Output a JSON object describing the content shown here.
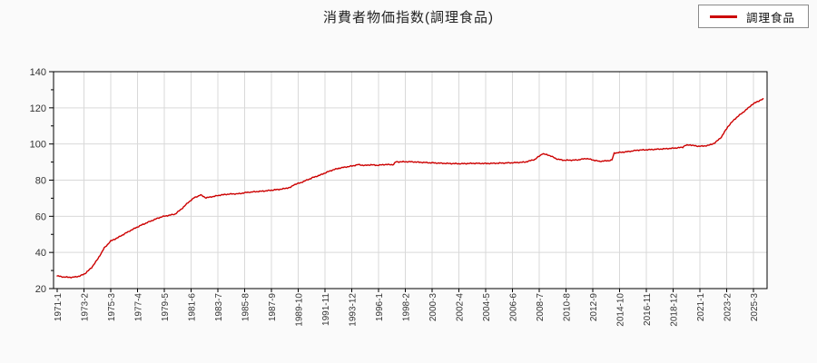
{
  "page": {
    "background": "#fafafa"
  },
  "header": {
    "title": "消費者物価指数(調理食品)"
  },
  "legend": {
    "items": [
      {
        "label": "調理食品",
        "color": "#cc0000"
      }
    ]
  },
  "chart_data": {
    "type": "line",
    "title": "消費者物価指数(調理食品)",
    "xlabel": "",
    "ylabel": "",
    "ylim": [
      20,
      140
    ],
    "y_major_ticks": [
      20,
      40,
      60,
      80,
      100,
      120,
      140
    ],
    "y_minor_step": 10,
    "grid": true,
    "legend_position": "top-right",
    "x_tick_labels": [
      "1971-1",
      "1973-2",
      "1975-3",
      "1977-4",
      "1979-5",
      "1981-6",
      "1983-7",
      "1985-8",
      "1987-9",
      "1989-10",
      "1991-11",
      "1993-12",
      "1996-1",
      "1998-2",
      "2000-3",
      "2002-4",
      "2004-5",
      "2006-6",
      "2008-7",
      "2010-8",
      "2012-9",
      "2014-10",
      "2016-11",
      "2018-12",
      "2021-1",
      "2023-2",
      "2025-3"
    ],
    "x_tick_interval_months": 25,
    "x_range_months": [
      "1971-1",
      "2025-12"
    ],
    "series": [
      {
        "name": "調理食品",
        "color": "#cc0000",
        "points": [
          [
            "1971-1",
            27.0
          ],
          [
            "1971-7",
            26.4
          ],
          [
            "1972-3",
            26.2
          ],
          [
            "1972-10",
            26.9
          ],
          [
            "1973-3",
            28.3
          ],
          [
            "1973-9",
            31.5
          ],
          [
            "1974-3",
            36.5
          ],
          [
            "1974-9",
            42.5
          ],
          [
            "1975-3",
            46.3
          ],
          [
            "1975-9",
            48.0
          ],
          [
            "1976-3",
            50.0
          ],
          [
            "1976-9",
            52.0
          ],
          [
            "1977-3",
            53.8
          ],
          [
            "1977-9",
            55.5
          ],
          [
            "1978-3",
            57.0
          ],
          [
            "1978-9",
            58.5
          ],
          [
            "1979-3",
            59.8
          ],
          [
            "1979-9",
            60.5
          ],
          [
            "1980-3",
            61.2
          ],
          [
            "1980-9",
            64.0
          ],
          [
            "1981-3",
            67.5
          ],
          [
            "1981-9",
            70.3
          ],
          [
            "1982-3",
            71.8
          ],
          [
            "1982-8",
            70.2
          ],
          [
            "1983-3",
            71.0
          ],
          [
            "1983-10",
            71.8
          ],
          [
            "1984-6",
            72.3
          ],
          [
            "1985-3",
            72.5
          ],
          [
            "1985-10",
            73.2
          ],
          [
            "1986-6",
            73.6
          ],
          [
            "1987-3",
            74.0
          ],
          [
            "1987-10",
            74.5
          ],
          [
            "1988-6",
            75.0
          ],
          [
            "1989-3",
            76.0
          ],
          [
            "1989-6",
            77.5
          ],
          [
            "1989-12",
            78.5
          ],
          [
            "1990-6",
            80.0
          ],
          [
            "1990-12",
            81.5
          ],
          [
            "1991-6",
            82.7
          ],
          [
            "1991-12",
            84.2
          ],
          [
            "1992-6",
            85.6
          ],
          [
            "1992-12",
            86.6
          ],
          [
            "1993-6",
            87.2
          ],
          [
            "1993-12",
            87.8
          ],
          [
            "1994-6",
            88.6
          ],
          [
            "1994-12",
            88.1
          ],
          [
            "1995-6",
            88.5
          ],
          [
            "1995-12",
            88.2
          ],
          [
            "1996-6",
            88.6
          ],
          [
            "1997-3",
            88.6
          ],
          [
            "1997-5",
            90.1
          ],
          [
            "1998-6",
            90.2
          ],
          [
            "1999-6",
            89.8
          ],
          [
            "2000-6",
            89.5
          ],
          [
            "2001-6",
            89.2
          ],
          [
            "2002-6",
            89.1
          ],
          [
            "2003-6",
            89.3
          ],
          [
            "2004-6",
            89.2
          ],
          [
            "2005-6",
            89.4
          ],
          [
            "2006-6",
            89.6
          ],
          [
            "2007-6",
            90.0
          ],
          [
            "2008-3",
            91.5
          ],
          [
            "2008-10",
            94.6
          ],
          [
            "2009-4",
            93.8
          ],
          [
            "2009-12",
            91.6
          ],
          [
            "2010-6",
            91.0
          ],
          [
            "2011-6",
            91.1
          ],
          [
            "2012-3",
            92.0
          ],
          [
            "2012-9",
            91.2
          ],
          [
            "2013-3",
            90.4
          ],
          [
            "2013-12",
            90.8
          ],
          [
            "2014-3",
            91.2
          ],
          [
            "2014-5",
            95.0
          ],
          [
            "2015-6",
            95.8
          ],
          [
            "2016-3",
            96.6
          ],
          [
            "2017-3",
            96.9
          ],
          [
            "2018-3",
            97.3
          ],
          [
            "2019-3",
            97.8
          ],
          [
            "2019-9",
            98.2
          ],
          [
            "2019-11",
            99.2
          ],
          [
            "2020-4",
            99.5
          ],
          [
            "2020-10",
            98.8
          ],
          [
            "2021-4",
            98.8
          ],
          [
            "2021-10",
            99.4
          ],
          [
            "2022-3",
            100.6
          ],
          [
            "2022-9",
            103.8
          ],
          [
            "2023-3",
            109.5
          ],
          [
            "2023-9",
            113.5
          ],
          [
            "2024-2",
            116.0
          ],
          [
            "2024-8",
            118.8
          ],
          [
            "2025-1",
            121.5
          ],
          [
            "2025-6",
            123.3
          ],
          [
            "2025-12",
            124.8
          ]
        ]
      }
    ],
    "colors": {
      "grid": "#d9d9d9",
      "axis": "#000000",
      "tick_label": "#333333",
      "plot_bg": "#ffffff"
    }
  }
}
